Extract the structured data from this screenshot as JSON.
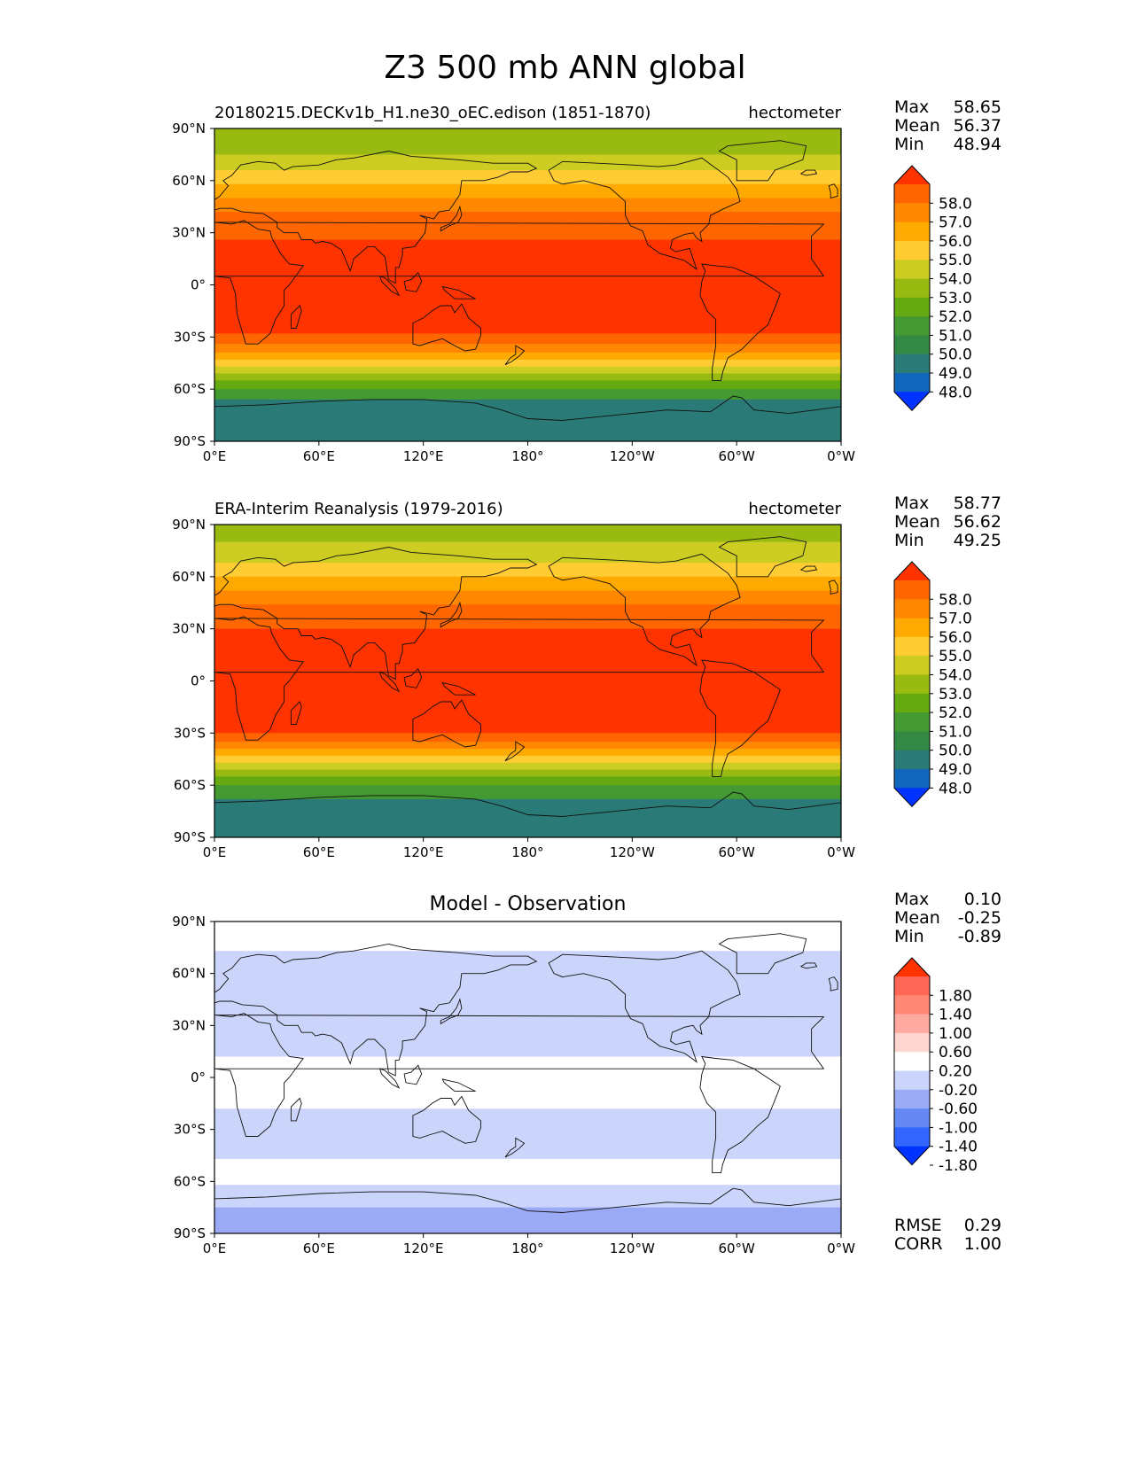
{
  "figure_title": "Z3 500 mb ANN global",
  "chart_data": [
    {
      "type": "heatmap",
      "title": "20180215.DECKv1b_H1.ne30_oEC.edison (1851-1870)",
      "units": "hectometer",
      "stats": {
        "labels": [
          "Max",
          "Mean",
          "Min"
        ],
        "values": [
          "58.65",
          "56.37",
          "48.94"
        ]
      },
      "colorbar": {
        "levels": [
          "58.0",
          "57.0",
          "56.0",
          "55.0",
          "54.0",
          "53.0",
          "52.0",
          "51.0",
          "50.0",
          "49.0",
          "48.0"
        ],
        "colors": [
          "#ff3300",
          "#ff6600",
          "#ff8800",
          "#ffaa00",
          "#ffcc33",
          "#cccc22",
          "#99bb11",
          "#66aa11",
          "#449933",
          "#338844",
          "#2a7a77",
          "#1166bb",
          "#0033ff"
        ]
      },
      "lat_bands": [
        {
          "lat_top": 90,
          "lat_bot": 83,
          "value_color": "#99bb11"
        },
        {
          "lat_top": 83,
          "lat_bot": 75,
          "value_color": "#99bb11"
        },
        {
          "lat_top": 75,
          "lat_bot": 66,
          "value_color": "#cccc22"
        },
        {
          "lat_top": 66,
          "lat_bot": 58,
          "value_color": "#ffcc33"
        },
        {
          "lat_top": 58,
          "lat_bot": 50,
          "value_color": "#ffaa00"
        },
        {
          "lat_top": 50,
          "lat_bot": 42,
          "value_color": "#ff8800"
        },
        {
          "lat_top": 42,
          "lat_bot": 34,
          "value_color": "#ff6600"
        },
        {
          "lat_top": 34,
          "lat_bot": 26,
          "value_color": "#ff6600"
        },
        {
          "lat_top": 26,
          "lat_bot": -28,
          "value_color": "#ff3300"
        },
        {
          "lat_top": -28,
          "lat_bot": -34,
          "value_color": "#ff6600"
        },
        {
          "lat_top": -34,
          "lat_bot": -39,
          "value_color": "#ff8800"
        },
        {
          "lat_top": -39,
          "lat_bot": -43,
          "value_color": "#ffaa00"
        },
        {
          "lat_top": -43,
          "lat_bot": -47,
          "value_color": "#ffcc33"
        },
        {
          "lat_top": -47,
          "lat_bot": -51,
          "value_color": "#cccc22"
        },
        {
          "lat_top": -51,
          "lat_bot": -55,
          "value_color": "#99bb11"
        },
        {
          "lat_top": -55,
          "lat_bot": -60,
          "value_color": "#66aa11"
        },
        {
          "lat_top": -60,
          "lat_bot": -66,
          "value_color": "#449933"
        },
        {
          "lat_top": -66,
          "lat_bot": -90,
          "value_color": "#2a7a77"
        }
      ]
    },
    {
      "type": "heatmap",
      "title": "ERA-Interim Reanalysis (1979-2016)",
      "units": "hectometer",
      "stats": {
        "labels": [
          "Max",
          "Mean",
          "Min"
        ],
        "values": [
          "58.77",
          "56.62",
          "49.25"
        ]
      },
      "colorbar": {
        "levels": [
          "58.0",
          "57.0",
          "56.0",
          "55.0",
          "54.0",
          "53.0",
          "52.0",
          "51.0",
          "50.0",
          "49.0",
          "48.0"
        ],
        "colors": [
          "#ff3300",
          "#ff6600",
          "#ff8800",
          "#ffaa00",
          "#ffcc33",
          "#cccc22",
          "#99bb11",
          "#66aa11",
          "#449933",
          "#338844",
          "#2a7a77",
          "#1166bb",
          "#0033ff"
        ]
      },
      "lat_bands": [
        {
          "lat_top": 90,
          "lat_bot": 80,
          "value_color": "#99bb11"
        },
        {
          "lat_top": 80,
          "lat_bot": 68,
          "value_color": "#cccc22"
        },
        {
          "lat_top": 68,
          "lat_bot": 60,
          "value_color": "#ffcc33"
        },
        {
          "lat_top": 60,
          "lat_bot": 52,
          "value_color": "#ffaa00"
        },
        {
          "lat_top": 52,
          "lat_bot": 44,
          "value_color": "#ff8800"
        },
        {
          "lat_top": 44,
          "lat_bot": 37,
          "value_color": "#ff6600"
        },
        {
          "lat_top": 37,
          "lat_bot": 30,
          "value_color": "#ff6600"
        },
        {
          "lat_top": 30,
          "lat_bot": -30,
          "value_color": "#ff3300"
        },
        {
          "lat_top": -30,
          "lat_bot": -35,
          "value_color": "#ff6600"
        },
        {
          "lat_top": -35,
          "lat_bot": -39,
          "value_color": "#ff8800"
        },
        {
          "lat_top": -39,
          "lat_bot": -43,
          "value_color": "#ffaa00"
        },
        {
          "lat_top": -43,
          "lat_bot": -47,
          "value_color": "#ffcc33"
        },
        {
          "lat_top": -47,
          "lat_bot": -51,
          "value_color": "#cccc22"
        },
        {
          "lat_top": -51,
          "lat_bot": -55,
          "value_color": "#99bb11"
        },
        {
          "lat_top": -55,
          "lat_bot": -60,
          "value_color": "#66aa11"
        },
        {
          "lat_top": -60,
          "lat_bot": -68,
          "value_color": "#449933"
        },
        {
          "lat_top": -68,
          "lat_bot": -90,
          "value_color": "#2a7a77"
        }
      ]
    },
    {
      "type": "heatmap",
      "title": "Model - Observation",
      "units": "",
      "stats": {
        "labels": [
          "Max",
          "Mean",
          "Min"
        ],
        "values": [
          "0.10",
          "-0.25",
          "-0.89"
        ]
      },
      "colorbar": {
        "levels": [
          "1.80",
          "1.40",
          "1.00",
          "0.60",
          "0.20",
          "-0.20",
          "-0.60",
          "-1.00",
          "-1.40",
          "-1.80"
        ],
        "colors": [
          "#ff3300",
          "#ff6655",
          "#ff8877",
          "#ffaaa0",
          "#ffd5d0",
          "#ffffff",
          "#cbd5fb",
          "#9aaaf5",
          "#6688f5",
          "#3366ff",
          "#0033ff"
        ]
      },
      "lat_bands": [
        {
          "lat_top": 90,
          "lat_bot": 73,
          "value_color": "#ffffff"
        },
        {
          "lat_top": 73,
          "lat_bot": 12,
          "value_color": "#cbd5fb"
        },
        {
          "lat_top": 12,
          "lat_bot": -18,
          "value_color": "#ffffff"
        },
        {
          "lat_top": -18,
          "lat_bot": -47,
          "value_color": "#cbd5fb"
        },
        {
          "lat_top": -47,
          "lat_bot": -62,
          "value_color": "#ffffff"
        },
        {
          "lat_top": -62,
          "lat_bot": -75,
          "value_color": "#cbd5fb"
        },
        {
          "lat_top": -75,
          "lat_bot": -90,
          "value_color": "#9aaaf5"
        }
      ],
      "error_stats": {
        "labels": [
          "RMSE",
          "CORR"
        ],
        "values": [
          "0.29",
          "1.00"
        ]
      }
    }
  ],
  "axes": {
    "xticks": [
      "0°E",
      "60°E",
      "120°E",
      "180°",
      "120°W",
      "60°W",
      "0°W"
    ],
    "yticks": [
      "90°N",
      "60°N",
      "30°N",
      "0°",
      "30°S",
      "60°S",
      "90°S"
    ],
    "xlim": [
      0,
      360
    ],
    "ylim": [
      -90,
      90
    ]
  }
}
